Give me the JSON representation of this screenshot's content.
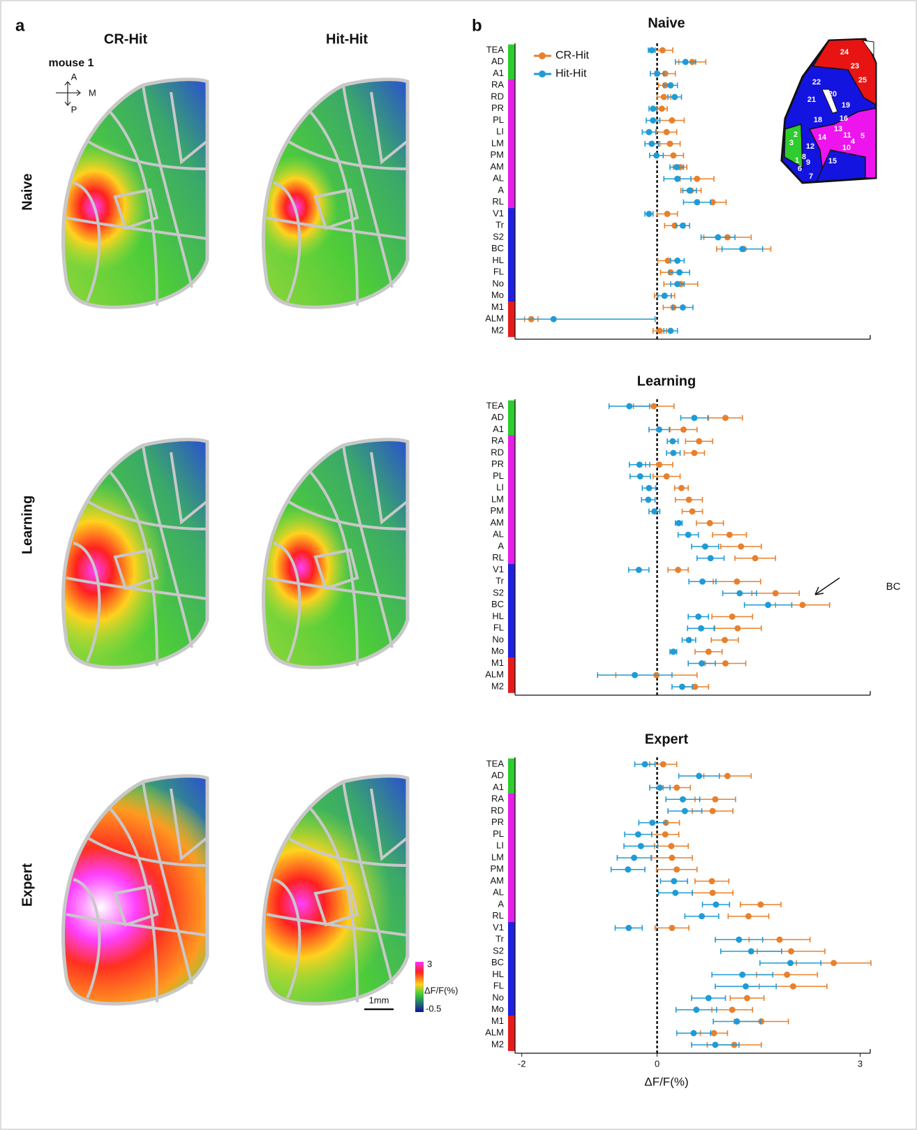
{
  "panel_a": {
    "label": "a",
    "columns": [
      "CR-Hit",
      "Hit-Hit"
    ],
    "mouse": "mouse 1",
    "compass": [
      "A",
      "M",
      "P"
    ],
    "rows": [
      "Naive",
      "Learning",
      "Expert"
    ],
    "colorbar": {
      "label": "ΔF/F(%)",
      "max": 3,
      "min": -0.5
    },
    "scale_bar": "1mm"
  },
  "panel_b": {
    "label": "b",
    "inset_labels": [
      "24",
      "23",
      "25",
      "22",
      "20",
      "21",
      "19",
      "18",
      "16",
      "13",
      "5",
      "14",
      "11",
      "4",
      "2",
      "3",
      "12",
      "10",
      "8",
      "9",
      "1",
      "15",
      "6",
      "7"
    ]
  },
  "chart_data": [
    {
      "type": "forest",
      "title": "Naive",
      "legend": "top-left",
      "categories": [
        "TEA",
        "AD",
        "A1",
        "RA",
        "RD",
        "PR",
        "PL",
        "LI",
        "LM",
        "PM",
        "AM",
        "AL",
        "A",
        "RL",
        "V1",
        "Tr",
        "S2",
        "BC",
        "HL",
        "FL",
        "No",
        "Mo",
        "M1",
        "ALM",
        "M2"
      ],
      "category_colors": [
        "#2ecc2e",
        "#2ecc2e",
        "#2ecc2e",
        "#e61ee6",
        "#e61ee6",
        "#e61ee6",
        "#e61ee6",
        "#e61ee6",
        "#e61ee6",
        "#e61ee6",
        "#e61ee6",
        "#e61ee6",
        "#e61ee6",
        "#e61ee6",
        "#2020e0",
        "#2020e0",
        "#2020e0",
        "#2020e0",
        "#2020e0",
        "#2020e0",
        "#2020e0",
        "#2020e0",
        "#e61c1c",
        "#e61c1c",
        "#e61c1c"
      ],
      "series": [
        {
          "name": "CR-Hit",
          "color": "#e8802c",
          "values": [
            0.08,
            0.52,
            0.12,
            0.12,
            0.1,
            0.07,
            0.22,
            0.14,
            0.19,
            0.24,
            0.34,
            0.59,
            0.5,
            0.82,
            0.15,
            0.26,
            1.04,
            1.28,
            0.16,
            0.2,
            0.35,
            0.11,
            0.24,
            -1.86,
            0.04
          ],
          "errors": [
            0.15,
            0.2,
            0.15,
            0.1,
            0.1,
            0.08,
            0.18,
            0.15,
            0.15,
            0.15,
            0.1,
            0.25,
            0.15,
            0.2,
            0.15,
            0.15,
            0.35,
            0.4,
            0.15,
            0.15,
            0.25,
            0.15,
            0.15,
            0.1,
            0.1
          ]
        },
        {
          "name": "Hit-Hit",
          "color": "#1f9bd7",
          "values": [
            -0.08,
            0.42,
            0,
            0.2,
            0.26,
            -0.06,
            -0.06,
            -0.12,
            -0.08,
            -0.01,
            0.29,
            0.3,
            0.48,
            0.59,
            -0.12,
            0.38,
            0.9,
            1.26,
            0.3,
            0.33,
            0.3,
            0.11,
            0.38,
            -1.53,
            0.2
          ],
          "errors": [
            0.05,
            0.15,
            0.1,
            0.1,
            0.1,
            0.06,
            0.1,
            0.1,
            0.1,
            0.1,
            0.1,
            0.2,
            0.1,
            0.2,
            0.06,
            0.1,
            0.25,
            0.3,
            0.1,
            0.15,
            0.1,
            0.1,
            0.15,
            1.5,
            0.1
          ]
        }
      ],
      "xlim": [
        -2.1,
        3.15
      ]
    },
    {
      "type": "forest",
      "title": "Learning",
      "annotation": "BC",
      "categories": [
        "TEA",
        "AD",
        "A1",
        "RA",
        "RD",
        "PR",
        "PL",
        "LI",
        "LM",
        "PM",
        "AM",
        "AL",
        "A",
        "RL",
        "V1",
        "Tr",
        "S2",
        "BC",
        "HL",
        "FL",
        "No",
        "Mo",
        "M1",
        "ALM",
        "M2"
      ],
      "category_colors": [
        "#2ecc2e",
        "#2ecc2e",
        "#2ecc2e",
        "#e61ee6",
        "#e61ee6",
        "#e61ee6",
        "#e61ee6",
        "#e61ee6",
        "#e61ee6",
        "#e61ee6",
        "#e61ee6",
        "#e61ee6",
        "#e61ee6",
        "#e61ee6",
        "#2020e0",
        "#2020e0",
        "#2020e0",
        "#2020e0",
        "#2020e0",
        "#2020e0",
        "#2020e0",
        "#2020e0",
        "#e61c1c",
        "#e61c1c",
        "#e61c1c"
      ],
      "series": [
        {
          "color": "#e8802c",
          "values": [
            -0.05,
            1.01,
            0.39,
            0.62,
            0.55,
            0.03,
            0.14,
            0.36,
            0.47,
            0.52,
            0.78,
            1.07,
            1.24,
            1.45,
            0.31,
            1.18,
            1.75,
            2.15,
            1.11,
            1.19,
            1.0,
            0.76,
            1.01,
            -0.01,
            0.56
          ],
          "errors": [
            0.3,
            0.25,
            0.2,
            0.2,
            0.15,
            0.2,
            0.2,
            0.1,
            0.2,
            0.15,
            0.2,
            0.25,
            0.3,
            0.3,
            0.15,
            0.35,
            0.35,
            0.4,
            0.3,
            0.35,
            0.2,
            0.2,
            0.3,
            0.6,
            0.2
          ]
        },
        {
          "color": "#1f9bd7",
          "values": [
            -0.41,
            0.55,
            0.03,
            0.23,
            0.24,
            -0.26,
            -0.25,
            -0.12,
            -0.13,
            -0.04,
            0.32,
            0.46,
            0.71,
            0.79,
            -0.27,
            0.67,
            1.22,
            1.64,
            0.61,
            0.65,
            0.47,
            0.24,
            0.66,
            -0.33,
            0.37
          ],
          "errors": [
            0.3,
            0.2,
            0.15,
            0.08,
            0.1,
            0.15,
            0.15,
            0.1,
            0.1,
            0.08,
            0.05,
            0.15,
            0.2,
            0.2,
            0.15,
            0.2,
            0.25,
            0.35,
            0.15,
            0.2,
            0.1,
            0.05,
            0.2,
            0.55,
            0.15
          ]
        }
      ],
      "xlim": [
        -2.1,
        3.15
      ]
    },
    {
      "type": "forest",
      "title": "Expert",
      "xlabel": "ΔF/F(%)",
      "categories": [
        "TEA",
        "AD",
        "A1",
        "RA",
        "RD",
        "PR",
        "PL",
        "LI",
        "LM",
        "PM",
        "AM",
        "AL",
        "A",
        "RL",
        "V1",
        "Tr",
        "S2",
        "BC",
        "HL",
        "FL",
        "No",
        "Mo",
        "M1",
        "ALM",
        "M2"
      ],
      "category_colors": [
        "#2ecc2e",
        "#2ecc2e",
        "#2ecc2e",
        "#e61ee6",
        "#e61ee6",
        "#e61ee6",
        "#e61ee6",
        "#e61ee6",
        "#e61ee6",
        "#e61ee6",
        "#e61ee6",
        "#e61ee6",
        "#e61ee6",
        "#e61ee6",
        "#2020e0",
        "#2020e0",
        "#2020e0",
        "#2020e0",
        "#2020e0",
        "#2020e0",
        "#2020e0",
        "#2020e0",
        "#e61c1c",
        "#e61c1c",
        "#e61c1c"
      ],
      "series": [
        {
          "color": "#e8802c",
          "values": [
            0.09,
            1.04,
            0.29,
            0.86,
            0.82,
            0.13,
            0.12,
            0.21,
            0.22,
            0.29,
            0.81,
            0.82,
            1.53,
            1.35,
            0.22,
            1.81,
            1.98,
            2.61,
            1.92,
            2.01,
            1.33,
            1.11,
            1.54,
            0.84,
            1.14
          ],
          "errors": [
            0.2,
            0.35,
            0.2,
            0.3,
            0.3,
            0.2,
            0.2,
            0.25,
            0.3,
            0.3,
            0.25,
            0.3,
            0.3,
            0.3,
            0.25,
            0.45,
            0.5,
            0.55,
            0.45,
            0.5,
            0.25,
            0.3,
            0.4,
            0.2,
            0.4
          ]
        },
        {
          "color": "#1f9bd7",
          "values": [
            -0.18,
            0.62,
            0.04,
            0.38,
            0.41,
            -0.07,
            -0.28,
            -0.24,
            -0.34,
            -0.43,
            0.25,
            0.27,
            0.87,
            0.66,
            -0.42,
            1.21,
            1.39,
            1.97,
            1.26,
            1.31,
            0.76,
            0.58,
            1.18,
            0.54,
            0.86
          ],
          "errors": [
            0.15,
            0.3,
            0.15,
            0.25,
            0.25,
            0.2,
            0.2,
            0.25,
            0.25,
            0.25,
            0.2,
            0.25,
            0.2,
            0.25,
            0.2,
            0.35,
            0.45,
            0.45,
            0.45,
            0.45,
            0.25,
            0.3,
            0.35,
            0.25,
            0.35
          ]
        }
      ],
      "xlim": [
        -2.1,
        3.15
      ],
      "xticks": [
        -2,
        0,
        3
      ]
    }
  ]
}
